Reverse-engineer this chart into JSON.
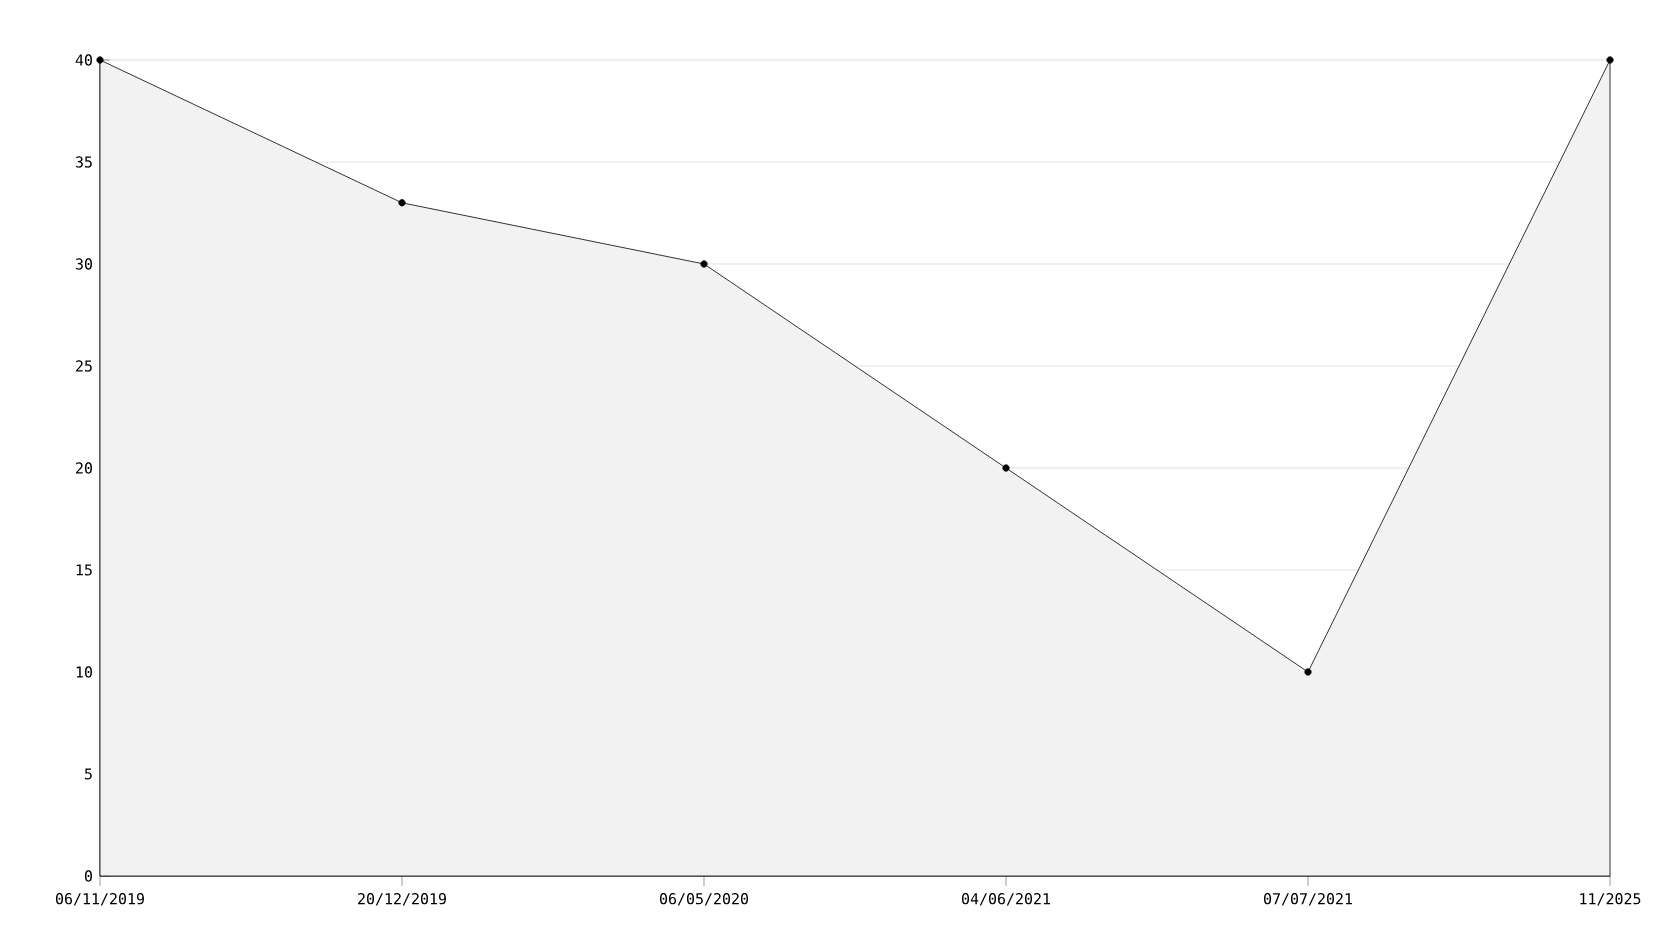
{
  "chart_data": {
    "type": "area",
    "categories": [
      "06/11/2019",
      "20/12/2019",
      "06/05/2020",
      "04/06/2021",
      "07/07/2021",
      "11/2025"
    ],
    "values": [
      40,
      33,
      30,
      20,
      10,
      40
    ],
    "color": "#f2f2f2",
    "ylim": [
      0,
      40
    ],
    "yticks": [
      0,
      5,
      10,
      15,
      20,
      25,
      30,
      35,
      40
    ],
    "grid": "y",
    "marker": "circle"
  }
}
